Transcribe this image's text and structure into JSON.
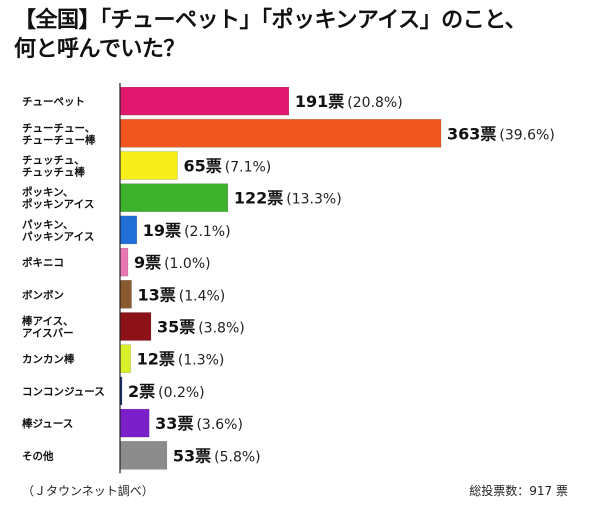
{
  "title": {
    "line1": "【全国】「チューペット」「ポッキンアイス」のこと、",
    "line2": "何と呼んでいた？"
  },
  "source": "（Ｊタウンネット調べ）",
  "total": "総投票数：917 票",
  "chart_data": {
    "type": "bar",
    "orientation": "horizontal",
    "title": "【全国】「チューペット」「ポッキンアイス」のこと、何と呼んでいた？",
    "xlim": [
      0,
      363
    ],
    "grid": false,
    "categories": [
      [
        "チューペット"
      ],
      [
        "チューチュー、",
        "チューチュー棒"
      ],
      [
        "チュッチュ、",
        "チュッチュ棒"
      ],
      [
        "ポッキン、",
        "ポッキンアイス"
      ],
      [
        "パッキン、",
        "パッキンアイス"
      ],
      [
        "ポキニコ"
      ],
      [
        "ボンボン"
      ],
      [
        "棒アイス、",
        "アイスバー"
      ],
      [
        "カンカン棒"
      ],
      [
        "コンコンジュース"
      ],
      [
        "棒ジュース"
      ],
      [
        "その他"
      ]
    ],
    "values": [
      191,
      363,
      65,
      122,
      19,
      9,
      13,
      35,
      12,
      2,
      33,
      53
    ],
    "value_labels": [
      "191票",
      "363票",
      "65票",
      "122票",
      "19票",
      "9票",
      "13票",
      "35票",
      "12票",
      "2票",
      "33票",
      "53票"
    ],
    "percent_labels": [
      "(20.8%)",
      "(39.6%)",
      "(7.1%)",
      "(13.3%)",
      "(2.1%)",
      "(1.0%)",
      "(1.4%)",
      "(3.8%)",
      "(1.3%)",
      "(0.2%)",
      "(3.6%)",
      "(5.8%)"
    ],
    "colors": [
      "#e0196e",
      "#f0561f",
      "#f7ef1c",
      "#3db22c",
      "#1f6fd6",
      "#e877b4",
      "#8a5a2f",
      "#8d1217",
      "#d9f029",
      "#17327d",
      "#7a1fc9",
      "#8c8c8c"
    ]
  }
}
